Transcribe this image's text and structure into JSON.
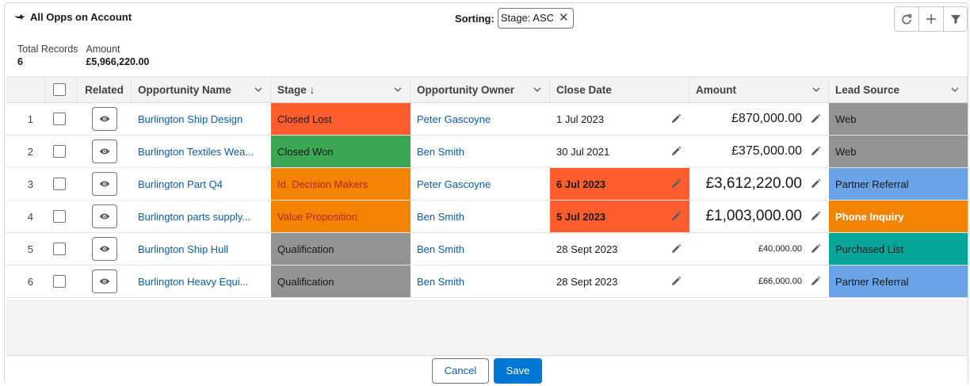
{
  "header": {
    "title": "All Opps on Account",
    "sorting_label": "Sorting:",
    "sort_pill": "Stage: ASC",
    "sort_pill_close": "✕"
  },
  "summary": {
    "total_label": "Total Records",
    "total_value": "6",
    "amount_label": "Amount",
    "amount_value": "£5,966,220.00"
  },
  "columns": {
    "related": "Related",
    "name": "Opportunity Name",
    "stage": "Stage ↓",
    "owner": "Opportunity Owner",
    "close": "Close Date",
    "amount": "Amount",
    "lead": "Lead Source"
  },
  "rows": [
    {
      "num": "1",
      "name": "Burlington Ship Design",
      "stage": "Closed Lost",
      "owner": "Peter Gascoyne",
      "close": "1 Jul 2023",
      "amount": "£870,000.00",
      "lead": "Web"
    },
    {
      "num": "2",
      "name": "Burlington Textiles Wea...",
      "stage": "Closed Won",
      "owner": "Ben Smith",
      "close": "30 Jul 2021",
      "amount": "£375,000.00",
      "lead": "Web"
    },
    {
      "num": "3",
      "name": "Burlington Part Q4",
      "stage": "Id. Decision Makers",
      "owner": "Peter Gascoyne",
      "close": "6 Jul 2023",
      "amount": "£3,612,220.00",
      "lead": "Partner Referral"
    },
    {
      "num": "4",
      "name": "Burlington parts supply...",
      "stage": "Value Proposition",
      "owner": "Ben Smith",
      "close": "5 Jul 2023",
      "amount": "£1,003,000.00",
      "lead": "Phone Inquiry"
    },
    {
      "num": "5",
      "name": "Burlington Ship Hull",
      "stage": "Qualification",
      "owner": "Ben Smith",
      "close": "28 Sept 2023",
      "amount": "£40,000.00",
      "lead": "Purchased List"
    },
    {
      "num": "6",
      "name": "Burlington Heavy Equi...",
      "stage": "Qualification",
      "owner": "Ben Smith",
      "close": "28 Sept 2023",
      "amount": "£66,000.00",
      "lead": "Partner Referral"
    }
  ],
  "colors": {
    "closed_lost": "#ff5d2d",
    "closed_won": "#3ba755",
    "orange_stage": "#f38303",
    "qualification": "#939393",
    "web": "#939393",
    "partner_referral": "#6ba4e6",
    "phone_inquiry": "#f38303",
    "purchased_list": "#06a59a",
    "overdue_date": "#ff5d2d",
    "link": "#0b5cab",
    "brand": "#0176d3"
  },
  "footer": {
    "cancel": "Cancel",
    "save": "Save"
  }
}
